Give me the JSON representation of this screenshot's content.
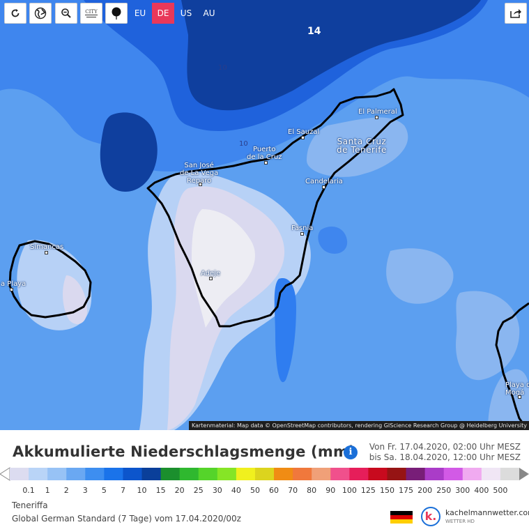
{
  "toolbar": {
    "buttons": [
      {
        "name": "refresh-icon"
      },
      {
        "name": "globe-icon"
      },
      {
        "name": "zoom-out-icon"
      },
      {
        "name": "city-names-icon",
        "label": "CITY"
      },
      {
        "name": "map-marker-icon"
      }
    ],
    "regions": [
      {
        "label": "EU",
        "active": false
      },
      {
        "label": "DE",
        "active": true
      },
      {
        "label": "US",
        "active": false
      },
      {
        "label": "AU",
        "active": false
      }
    ],
    "share_icon": "share-icon"
  },
  "map": {
    "contours": [
      "14",
      "10",
      "10"
    ],
    "cities": [
      {
        "name": "El Palmeral",
        "big": false
      },
      {
        "name": "El Sauzal",
        "big": false
      },
      {
        "name": "Santa Cruz de Tenerife",
        "line1": "Santa Cruz",
        "line2": "de Tenerife",
        "big": true
      },
      {
        "name": "Puerto de la Cruz",
        "line1": "Puerto",
        "line2": "de la Cruz",
        "big": false
      },
      {
        "name": "San José de La Vega Reparo",
        "line1": "San José",
        "line2": "de La Vega",
        "line3": "Reparo",
        "big": false
      },
      {
        "name": "Candelaria",
        "big": false
      },
      {
        "name": "Fasnia",
        "big": false
      },
      {
        "name": "Adeje",
        "big": false
      },
      {
        "name": "Simancas",
        "big": false
      },
      {
        "name": "a Playa",
        "big": false
      },
      {
        "name": "Playa de Mogá",
        "line1": "Playa d",
        "line2": "Mogá",
        "big": false
      }
    ],
    "attribution": "Kartenmaterial: Map data © OpenStreetMap contributors, rendering GIScience Research Group @ Heidelberg University"
  },
  "header": {
    "title": "Akkumulierte Niederschlagsmenge (mm)",
    "info_icon": "info-icon",
    "period_from": "Von Fr. 17.04.2020, 02:00 Uhr MESZ",
    "period_to": "bis Sa. 18.04.2020, 12:00 Uhr MESZ"
  },
  "legend": {
    "labels": [
      "0.1",
      "1",
      "2",
      "3",
      "5",
      "7",
      "10",
      "15",
      "20",
      "25",
      "30",
      "40",
      "50",
      "60",
      "70",
      "80",
      "90",
      "100",
      "125",
      "150",
      "175",
      "200",
      "250",
      "300",
      "400",
      "500"
    ],
    "colors": [
      "#dcdcf0",
      "#b9d4f7",
      "#97c2f5",
      "#6aa8f2",
      "#3d8ef0",
      "#1a73ea",
      "#0c55cc",
      "#0a3f9a",
      "#1b8f2d",
      "#2fb82f",
      "#55d42a",
      "#86e526",
      "#f0f01e",
      "#dcd41e",
      "#f08c14",
      "#f0783c",
      "#f0a078",
      "#f0508c",
      "#e61e5a",
      "#c80a1e",
      "#961414",
      "#781e78",
      "#aa3cc8",
      "#d25ae6",
      "#f0aaf0",
      "#f0e6f5",
      "#dcdcdc"
    ]
  },
  "footer": {
    "region": "Teneriffa",
    "model_run": "Global German Standard  (7 Tage)  vom 17.04.2020/00z",
    "flag_colors": [
      "#000000",
      "#dd0000",
      "#ffce00"
    ],
    "logo_letter": "k.",
    "logo_name": "kachelmannwetter.com",
    "logo_sub": "WETTER HD"
  }
}
